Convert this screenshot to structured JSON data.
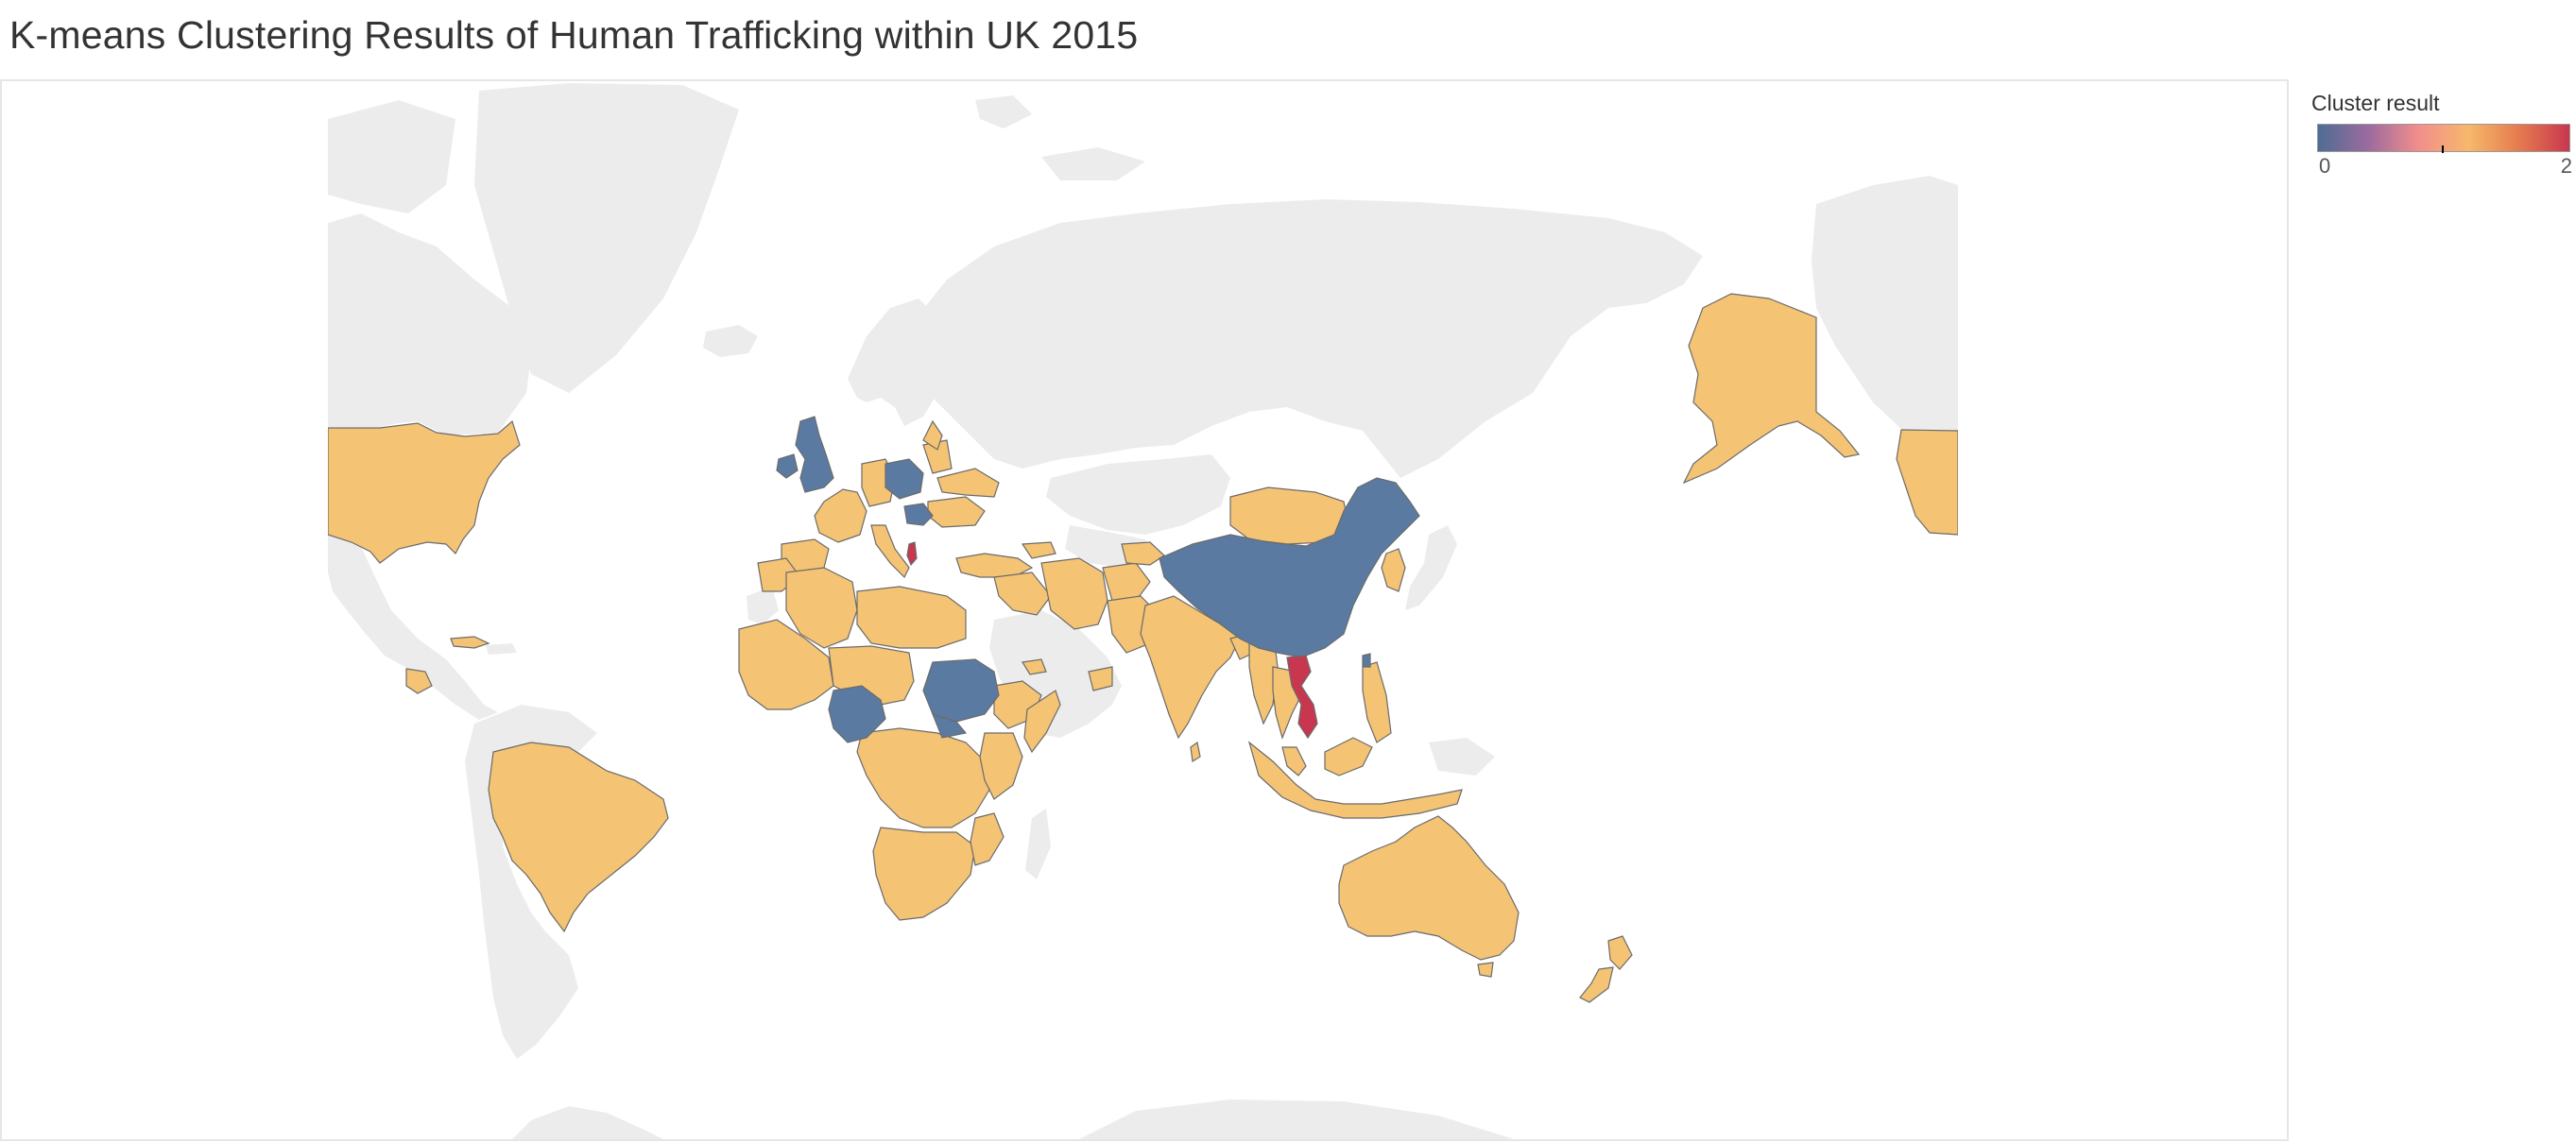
{
  "title": "K-means Clustering Results of Human Trafficking within UK 2015",
  "legend": {
    "title": "Cluster result",
    "min_label": "0",
    "max_label": "2",
    "min": 0,
    "max": 2,
    "mid": 1,
    "gradient_colors": [
      "#4e6d94",
      "#9b6b9e",
      "#f28e8c",
      "#f6b86b",
      "#e57b4f",
      "#c8374f"
    ],
    "mid_color": "#f6b86b"
  },
  "map": {
    "type": "choropleth-world",
    "color_field": "Cluster result",
    "colors": {
      "cluster_0": "#5a7aa1",
      "cluster_1": "#f4c374",
      "cluster_2": "#c8374f",
      "no_data": "#ececec",
      "ocean": "#ffffff",
      "border": "#6b6b6b"
    },
    "cluster_0": [
      "United Kingdom",
      "Poland",
      "Hungary",
      "China",
      "Nigeria",
      "Sudan"
    ],
    "cluster_1": [
      "United States",
      "Alaska",
      "Brazil",
      "Australia",
      "New Zealand",
      "India",
      "Mongolia",
      "France",
      "Spain",
      "Germany",
      "Romania",
      "Turkey",
      "Iran",
      "Pakistan",
      "Afghanistan",
      "Algeria",
      "Libya",
      "Egypt",
      "Mali",
      "Niger",
      "Chad",
      "Ethiopia",
      "Kenya",
      "Somalia",
      "Democratic Republic of the Congo",
      "Angola",
      "Zambia",
      "Tanzania",
      "South Africa",
      "Indonesia",
      "Philippines",
      "Thailand",
      "Malaysia",
      "South Korea",
      "Cuba"
    ],
    "cluster_2": [
      "Vietnam",
      "Albania"
    ]
  }
}
